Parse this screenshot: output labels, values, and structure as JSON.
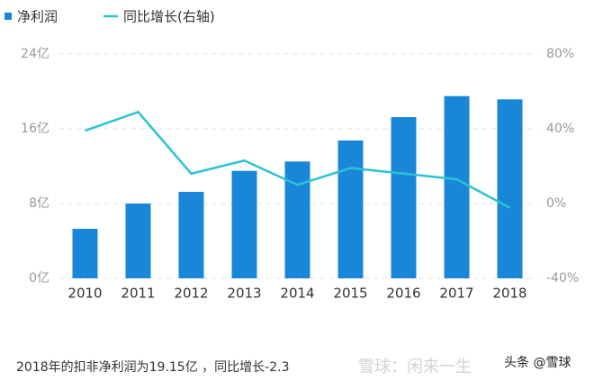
{
  "chart_data": {
    "type": "bar",
    "categories": [
      "2010",
      "2011",
      "2012",
      "2013",
      "2014",
      "2015",
      "2016",
      "2017",
      "2018"
    ],
    "series": [
      {
        "name": "净利润",
        "color": "#1a86d8",
        "type": "bar",
        "values": [
          5.3,
          8.0,
          9.25,
          11.5,
          12.5,
          14.75,
          17.25,
          19.5,
          19.15
        ]
      },
      {
        "name": "同比增长(右轴)",
        "color": "#2cc3d1",
        "type": "line",
        "axis": "y2",
        "values": [
          39,
          49,
          16,
          23,
          10,
          19,
          16,
          13,
          -2.3
        ]
      }
    ],
    "ylim": [
      0,
      24
    ],
    "yticks": [
      {
        "value": 0,
        "label": "0亿"
      },
      {
        "value": 8,
        "label": "8亿"
      },
      {
        "value": 16,
        "label": "16亿"
      },
      {
        "value": 24,
        "label": "24亿"
      }
    ],
    "y2lim": [
      -40,
      80
    ],
    "y2ticks": [
      {
        "value": -40,
        "label": "-40%"
      },
      {
        "value": 0,
        "label": "0%"
      },
      {
        "value": 40,
        "label": "40%"
      },
      {
        "value": 80,
        "label": "80%"
      }
    ],
    "grid": true,
    "legend": "top-left",
    "annotations": [
      "2018年的扣非净利润为19.15亿 ，同比增长-2.3",
      "雪球：闲来一生",
      "头条 @雪球"
    ]
  }
}
